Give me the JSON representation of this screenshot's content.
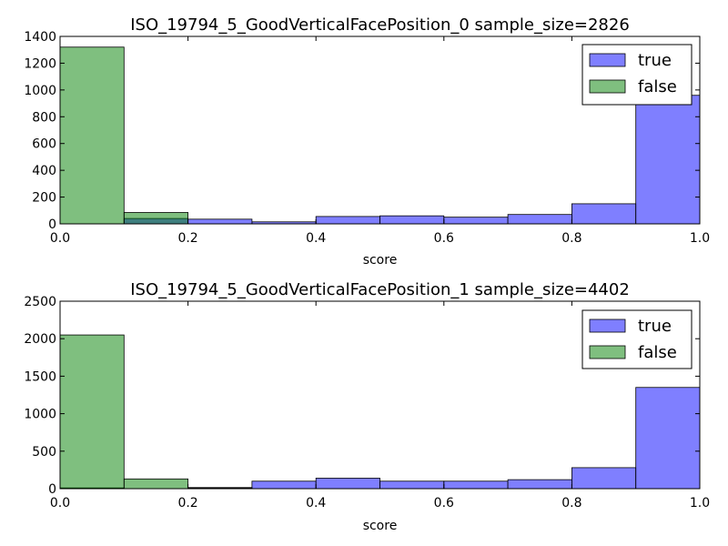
{
  "chart_data": [
    {
      "type": "bar",
      "title": "ISO_19794_5_GoodVerticalFacePosition_0 sample_size=2826",
      "xlabel": "score",
      "ylabel": "",
      "xlim": [
        0.0,
        1.0
      ],
      "ylim": [
        0,
        1400
      ],
      "xticks": [
        "0.0",
        "0.2",
        "0.4",
        "0.6",
        "0.8",
        "1.0"
      ],
      "yticks": [
        "0",
        "200",
        "400",
        "600",
        "800",
        "1000",
        "1200",
        "1400"
      ],
      "bin_edges": [
        0.0,
        0.1,
        0.2,
        0.3,
        0.4,
        0.5,
        0.6,
        0.7,
        0.8,
        0.9,
        1.0
      ],
      "legend_position": "top-right",
      "series": [
        {
          "name": "true",
          "color": "#0000ff",
          "values": [
            0,
            40,
            35,
            15,
            55,
            60,
            50,
            70,
            150,
            960
          ]
        },
        {
          "name": "false",
          "color": "#008000",
          "values": [
            1320,
            85,
            0,
            0,
            0,
            0,
            0,
            0,
            0,
            0
          ]
        }
      ]
    },
    {
      "type": "bar",
      "title": "ISO_19794_5_GoodVerticalFacePosition_1 sample_size=4402",
      "xlabel": "score",
      "ylabel": "",
      "xlim": [
        0.0,
        1.0
      ],
      "ylim": [
        0,
        2500
      ],
      "xticks": [
        "0.0",
        "0.2",
        "0.4",
        "0.6",
        "0.8",
        "1.0"
      ],
      "yticks": [
        "0",
        "500",
        "1000",
        "1500",
        "2000",
        "2500"
      ],
      "bin_edges": [
        0.0,
        0.1,
        0.2,
        0.3,
        0.4,
        0.5,
        0.6,
        0.7,
        0.8,
        0.9,
        1.0
      ],
      "legend_position": "top-right",
      "series": [
        {
          "name": "true",
          "color": "#0000ff",
          "values": [
            10,
            0,
            15,
            100,
            140,
            100,
            100,
            120,
            280,
            1350
          ]
        },
        {
          "name": "false",
          "color": "#008000",
          "values": [
            2050,
            130,
            10,
            0,
            0,
            0,
            0,
            0,
            0,
            0
          ]
        }
      ]
    }
  ]
}
